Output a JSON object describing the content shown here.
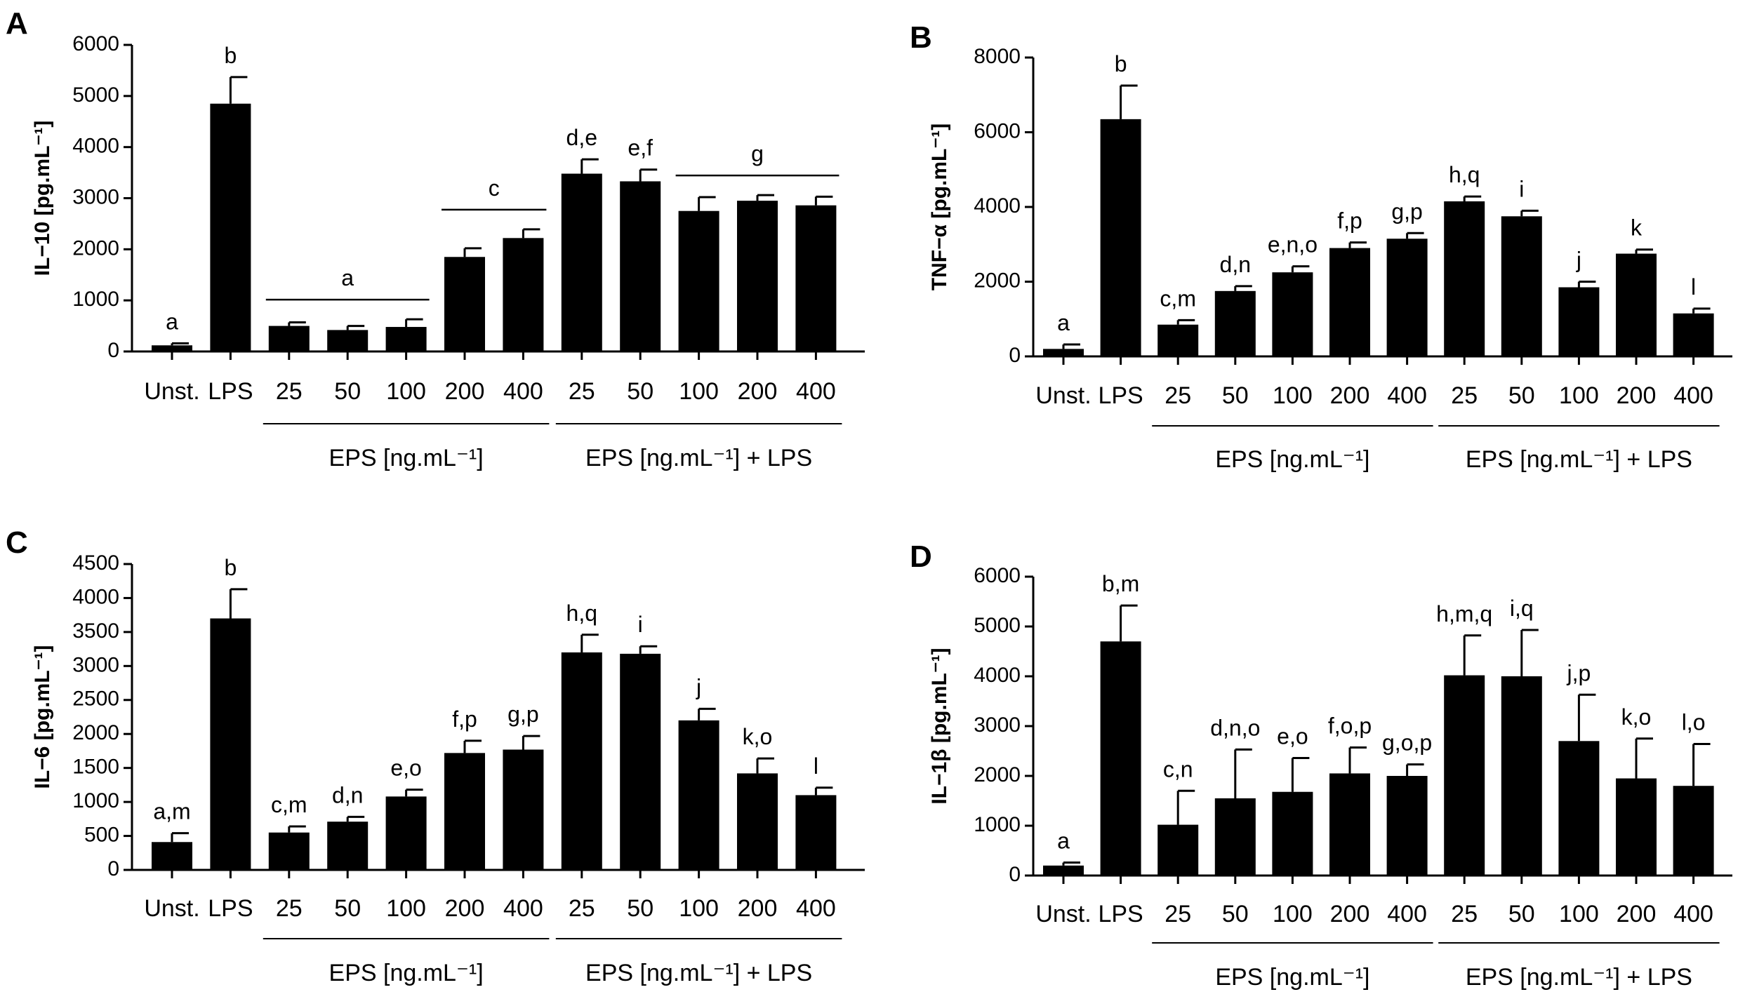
{
  "chart_data": [
    {
      "panel": "A",
      "type": "bar",
      "ylabel": "IL−10 [pg.mL⁻¹]",
      "ylim": [
        0,
        6000
      ],
      "yticks": [
        "0",
        "1000",
        "2000",
        "3000",
        "4000",
        "5000",
        "6000"
      ],
      "categories": [
        "Unst.",
        "LPS",
        "25",
        "50",
        "100",
        "200",
        "400",
        "25",
        "50",
        "100",
        "200",
        "400"
      ],
      "values": [
        120,
        4850,
        500,
        420,
        480,
        1850,
        2220,
        3480,
        3330,
        2750,
        2950,
        2860
      ],
      "errors": [
        40,
        520,
        70,
        80,
        150,
        170,
        170,
        280,
        230,
        270,
        110,
        170
      ],
      "sig_letters": [
        "a",
        "b",
        "",
        "",
        "",
        "",
        "",
        "d,e",
        "e,f",
        "",
        "",
        ""
      ],
      "sig_brackets": [
        {
          "from": 2,
          "to": 4,
          "label": "a"
        },
        {
          "from": 5,
          "to": 6,
          "label": "c"
        },
        {
          "from": 9,
          "to": 11,
          "label": "g"
        }
      ],
      "groups": [
        {
          "from": 2,
          "to": 6,
          "label": "EPS [ng.mL⁻¹]"
        },
        {
          "from": 7,
          "to": 11,
          "label": "EPS [ng.mL⁻¹] + LPS"
        }
      ],
      "grid": false
    },
    {
      "panel": "B",
      "type": "bar",
      "ylabel": "TNF−α [pg.mL⁻¹]",
      "ylim": [
        0,
        8000
      ],
      "yticks": [
        "0",
        "2000",
        "4000",
        "6000",
        "8000"
      ],
      "categories": [
        "Unst.",
        "LPS",
        "25",
        "50",
        "100",
        "200",
        "400",
        "25",
        "50",
        "100",
        "200",
        "400"
      ],
      "values": [
        200,
        6350,
        850,
        1750,
        2250,
        2900,
        3150,
        4150,
        3750,
        1850,
        2750,
        1150
      ],
      "errors": [
        120,
        900,
        120,
        130,
        160,
        150,
        150,
        130,
        150,
        150,
        110,
        130
      ],
      "sig_letters": [
        "a",
        "b",
        "c,m",
        "d,n",
        "e,n,o",
        "f,p",
        "g,p",
        "h,q",
        "i",
        "j",
        "k",
        "l"
      ],
      "sig_brackets": [],
      "groups": [
        {
          "from": 2,
          "to": 6,
          "label": "EPS [ng.mL⁻¹]"
        },
        {
          "from": 7,
          "to": 11,
          "label": "EPS [ng.mL⁻¹] + LPS"
        }
      ],
      "grid": false
    },
    {
      "panel": "C",
      "type": "bar",
      "ylabel": "IL−6 [pg.mL⁻¹]",
      "ylim": [
        0,
        4500
      ],
      "yticks": [
        "0",
        "500",
        "1000",
        "1500",
        "2000",
        "2500",
        "3000",
        "3500",
        "4000",
        "4500"
      ],
      "categories": [
        "Unst.",
        "LPS",
        "25",
        "50",
        "100",
        "200",
        "400",
        "25",
        "50",
        "100",
        "200",
        "400"
      ],
      "values": [
        410,
        3700,
        550,
        710,
        1080,
        1720,
        1770,
        3200,
        3180,
        2200,
        1420,
        1100
      ],
      "errors": [
        130,
        430,
        90,
        70,
        100,
        180,
        200,
        260,
        110,
        170,
        220,
        110
      ],
      "sig_letters": [
        "a,m",
        "b",
        "c,m",
        "d,n",
        "e,o",
        "f,p",
        "g,p",
        "h,q",
        "i",
        "j",
        "k,o",
        "l"
      ],
      "sig_brackets": [],
      "groups": [
        {
          "from": 2,
          "to": 6,
          "label": "EPS [ng.mL⁻¹]"
        },
        {
          "from": 7,
          "to": 11,
          "label": "EPS [ng.mL⁻¹] + LPS"
        }
      ],
      "grid": false
    },
    {
      "panel": "D",
      "type": "bar",
      "ylabel": "IL−1β [pg.mL⁻¹]",
      "ylim": [
        0,
        6000
      ],
      "yticks": [
        "0",
        "1000",
        "2000",
        "3000",
        "4000",
        "5000",
        "6000"
      ],
      "categories": [
        "Unst.",
        "LPS",
        "25",
        "50",
        "100",
        "200",
        "400",
        "25",
        "50",
        "100",
        "200",
        "400"
      ],
      "values": [
        200,
        4700,
        1020,
        1550,
        1680,
        2050,
        2000,
        4020,
        4000,
        2700,
        1950,
        1800
      ],
      "errors": [
        60,
        720,
        680,
        980,
        680,
        520,
        230,
        800,
        930,
        930,
        800,
        840
      ],
      "sig_letters": [
        "a",
        "b,m",
        "c,n",
        "d,n,o",
        "e,o",
        "f,o,p",
        "g,o,p",
        "h,m,q",
        "i,q",
        "j,p",
        "k,o",
        "l,o"
      ],
      "sig_brackets": [],
      "groups": [
        {
          "from": 2,
          "to": 6,
          "label": "EPS [ng.mL⁻¹]"
        },
        {
          "from": 7,
          "to": 11,
          "label": "EPS [ng.mL⁻¹] + LPS"
        }
      ],
      "grid": false
    }
  ]
}
